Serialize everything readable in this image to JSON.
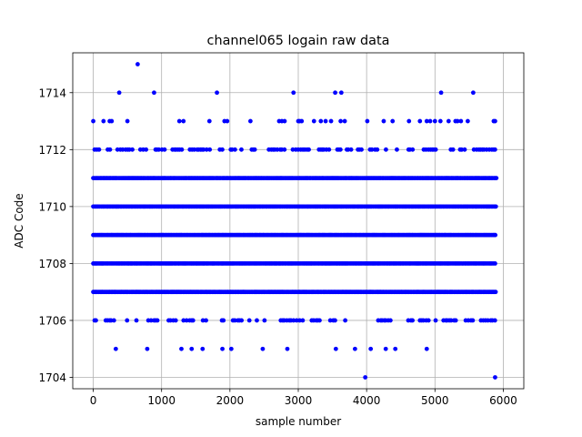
{
  "chart_data": {
    "type": "scatter",
    "title": "channel065 logain raw data",
    "xlabel": "sample number",
    "ylabel": "ADC Code",
    "xlim": [
      -300,
      6300
    ],
    "ylim": [
      1703.6,
      1715.4
    ],
    "xticks": [
      0,
      1000,
      2000,
      3000,
      4000,
      5000,
      6000
    ],
    "yticks": [
      1704,
      1706,
      1708,
      1710,
      1712,
      1714
    ],
    "grid": true,
    "marker_color": "#0000ff",
    "series": [
      {
        "x_range": [
          0,
          5900
        ],
        "dense_levels": [
          1707,
          1708,
          1709,
          1710,
          1711
        ],
        "frequent_levels": [
          1706,
          1712
        ],
        "sparse_points": {
          "1713": [
            0,
            150,
            240,
            270,
            500,
            1260,
            1320,
            1700,
            1920,
            1960,
            2300,
            2720,
            2760,
            2800,
            3000,
            3020,
            3050,
            3230,
            3330,
            3400,
            3480,
            3620,
            3680,
            4010,
            4250,
            4380,
            4620,
            4780,
            4880,
            4930,
            5000,
            5080,
            5200,
            5300,
            5330,
            5380,
            5480,
            5860,
            5880
          ],
          "1714": [
            380,
            890,
            1810,
            2930,
            3540,
            3630,
            5090,
            5560
          ],
          "1715": [
            650
          ],
          "1705": [
            330,
            790,
            1290,
            1440,
            1600,
            1890,
            2020,
            2480,
            2840,
            3550,
            3830,
            4060,
            4280,
            4420,
            4880
          ],
          "1704": [
            3980,
            5880
          ]
        }
      }
    ]
  }
}
